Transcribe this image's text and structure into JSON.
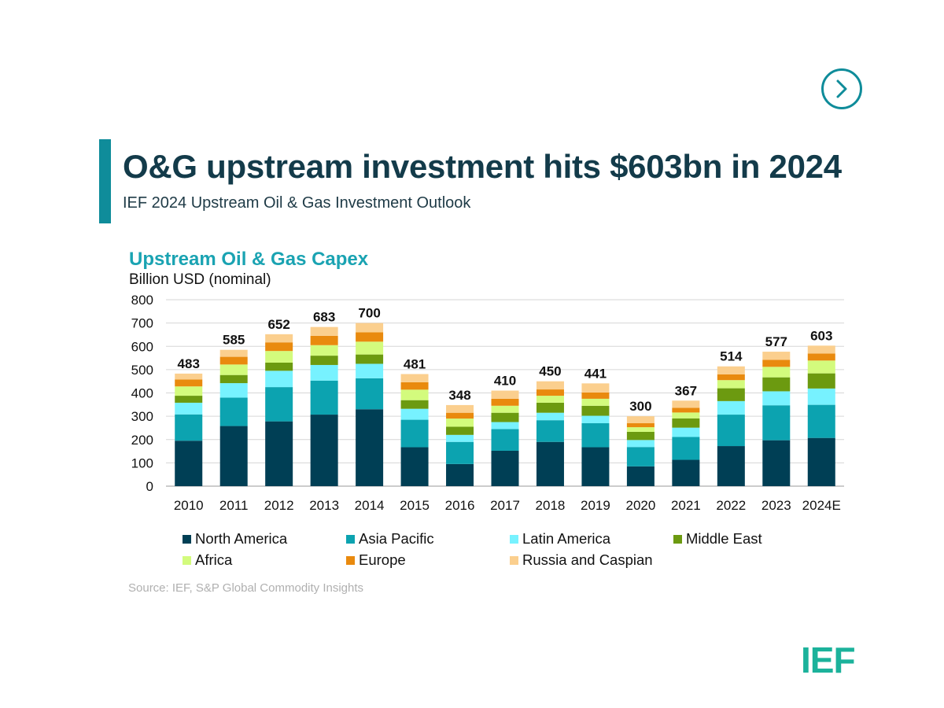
{
  "header": {
    "title": "O&G upstream investment hits $603bn in 2024",
    "subtitle": "IEF 2024 Upstream Oil & Gas Investment Outlook"
  },
  "nav": {
    "next_icon": "chevron-right-icon"
  },
  "logo": {
    "text": "IEF"
  },
  "source": "Source: IEF, S&P Global Commodity Insights",
  "colors": {
    "accent": "#0f8c9a",
    "title": "#133b4a",
    "chart_title": "#1aa3b2",
    "logo": "#1bb29b"
  },
  "chart_data": {
    "type": "bar",
    "stacked": true,
    "title": "Upstream Oil & Gas Capex",
    "ylabel": "Billion USD (nominal)",
    "xlabel": "",
    "ylim": [
      0,
      800
    ],
    "yticks": [
      0,
      100,
      200,
      300,
      400,
      500,
      600,
      700,
      800
    ],
    "grid": true,
    "legend_position": "bottom",
    "categories": [
      "2010",
      "2011",
      "2012",
      "2013",
      "2014",
      "2015",
      "2016",
      "2017",
      "2018",
      "2019",
      "2020",
      "2021",
      "2022",
      "2023",
      "2024E"
    ],
    "totals": [
      483,
      585,
      652,
      683,
      700,
      481,
      348,
      410,
      450,
      441,
      300,
      367,
      514,
      577,
      603
    ],
    "series": [
      {
        "name": "North America",
        "color": "#003f55",
        "values": [
          195,
          258,
          278,
          307,
          330,
          167,
          95,
          152,
          190,
          167,
          85,
          113,
          172,
          197,
          207
        ]
      },
      {
        "name": "Asia Pacific",
        "color": "#0ca3b0",
        "values": [
          113,
          122,
          147,
          146,
          133,
          118,
          95,
          93,
          93,
          103,
          83,
          98,
          135,
          150,
          142
        ]
      },
      {
        "name": "Latin America",
        "color": "#77f2ff",
        "values": [
          50,
          62,
          70,
          67,
          62,
          47,
          30,
          30,
          32,
          32,
          30,
          40,
          58,
          60,
          70
        ]
      },
      {
        "name": "Middle East",
        "color": "#6c9a10",
        "values": [
          30,
          35,
          35,
          40,
          40,
          37,
          35,
          40,
          43,
          43,
          35,
          40,
          55,
          60,
          65
        ]
      },
      {
        "name": "Africa",
        "color": "#d3fb7d",
        "values": [
          40,
          45,
          50,
          45,
          55,
          45,
          35,
          30,
          30,
          30,
          20,
          25,
          35,
          45,
          55
        ]
      },
      {
        "name": "Europe",
        "color": "#e98a0e",
        "values": [
          30,
          33,
          37,
          40,
          40,
          32,
          25,
          30,
          27,
          27,
          17,
          20,
          25,
          30,
          30
        ]
      },
      {
        "name": "Russia and Caspian",
        "color": "#fbcf8e",
        "values": [
          25,
          30,
          35,
          38,
          40,
          35,
          33,
          35,
          35,
          39,
          30,
          31,
          34,
          35,
          34
        ]
      }
    ]
  }
}
